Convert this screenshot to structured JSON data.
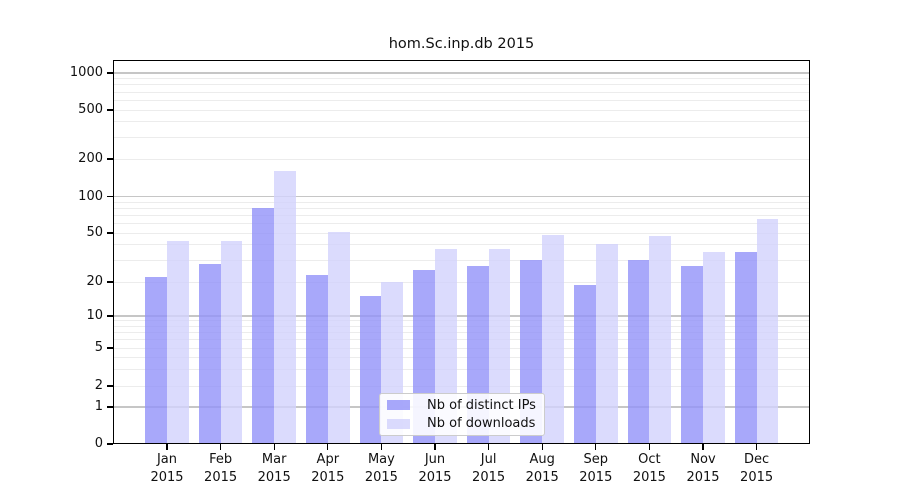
{
  "title": "hom.Sc.inp.db 2015",
  "chart_data": {
    "type": "bar",
    "title": "hom.Sc.inp.db 2015",
    "categories": [
      "Jan",
      "Feb",
      "Mar",
      "Apr",
      "May",
      "Jun",
      "Jul",
      "Aug",
      "Sep",
      "Oct",
      "Nov",
      "Dec"
    ],
    "x_tick_second_line": "2015",
    "series": [
      {
        "name": "Nb of distinct IPs",
        "color": "rgba(146,146,249,0.8)",
        "values": [
          22,
          28,
          80,
          23,
          15,
          25,
          27,
          30,
          19,
          30,
          27,
          35
        ]
      },
      {
        "name": "Nb of downloads",
        "color": "rgba(210,210,252,0.8)",
        "values": [
          43,
          43,
          160,
          51,
          20,
          37,
          37,
          48,
          41,
          47,
          35,
          65
        ]
      }
    ],
    "y_axis": {
      "scale": "symlog",
      "ticks": [
        0,
        1,
        2,
        5,
        10,
        20,
        50,
        100,
        200,
        500,
        1000
      ]
    },
    "grid": {
      "show": true,
      "major_color": "#c6c6c6",
      "minor_color": "#ececec"
    },
    "legend": {
      "position": "inside-bottom-center"
    },
    "axis_color": "#000000",
    "background_color": "#ffffff"
  }
}
